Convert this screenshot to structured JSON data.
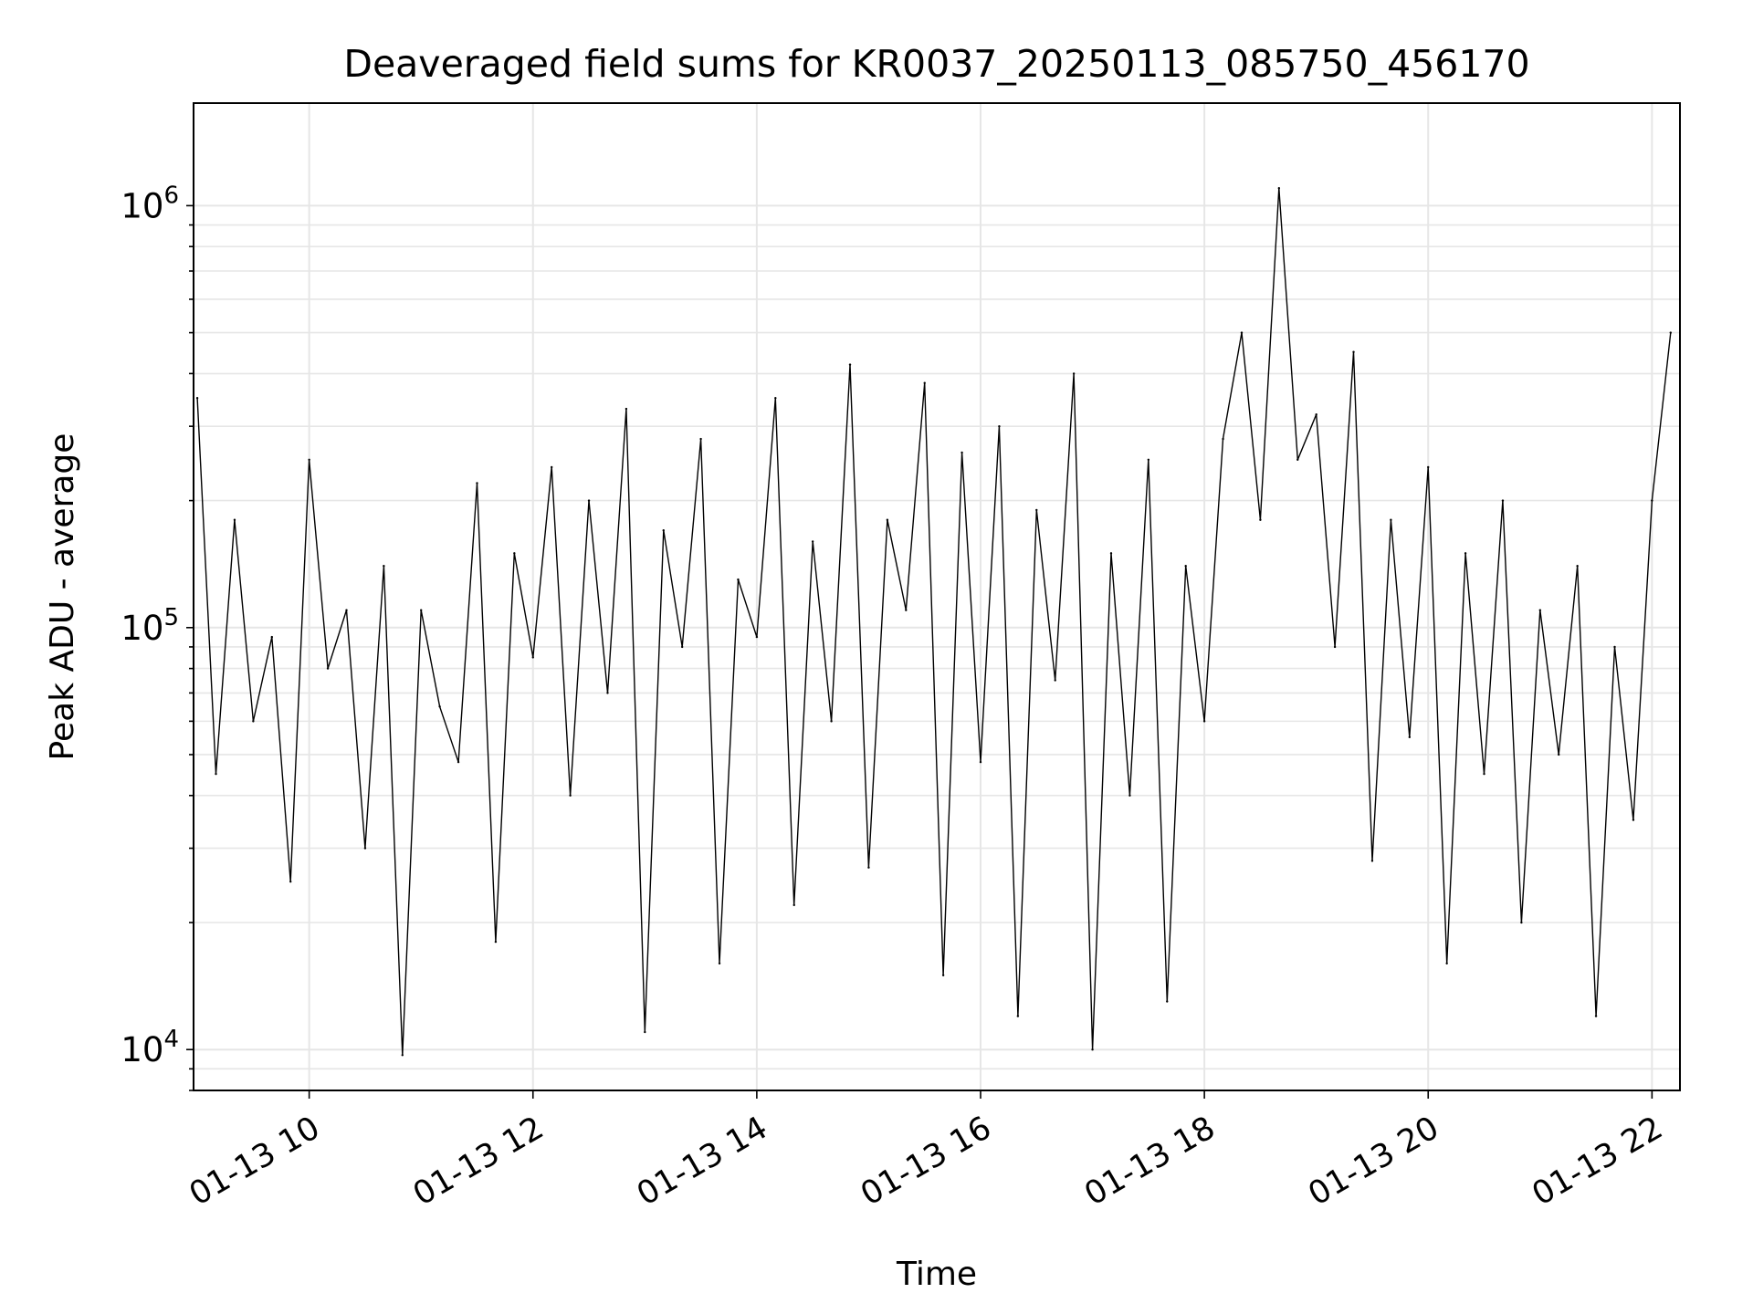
{
  "chart_data": {
    "type": "line",
    "title": "Deaveraged field sums for KR0037_20250113_085750_456170",
    "xlabel": "Time",
    "ylabel": "Peak ADU - average",
    "yscale": "log",
    "ylim": [
      8000,
      1750000
    ],
    "xlim": [
      "2025-01-13 08:58",
      "2025-01-13 22:15"
    ],
    "x_ticks": [
      {
        "t": "2025-01-13 10:00",
        "label": "01-13 10"
      },
      {
        "t": "2025-01-13 12:00",
        "label": "01-13 12"
      },
      {
        "t": "2025-01-13 14:00",
        "label": "01-13 14"
      },
      {
        "t": "2025-01-13 16:00",
        "label": "01-13 16"
      },
      {
        "t": "2025-01-13 18:00",
        "label": "01-13 18"
      },
      {
        "t": "2025-01-13 20:00",
        "label": "01-13 20"
      },
      {
        "t": "2025-01-13 22:00",
        "label": "01-13 22"
      }
    ],
    "y_ticks": [
      {
        "value": 10000,
        "base": "10",
        "exp": "4"
      },
      {
        "value": 100000,
        "base": "10",
        "exp": "5"
      },
      {
        "value": 1000000,
        "base": "10",
        "exp": "6"
      }
    ],
    "grid": true,
    "line_color": "#000000",
    "series": [
      {
        "x": [
          "2025-01-13 09:00",
          "2025-01-13 09:10",
          "2025-01-13 09:20",
          "2025-01-13 09:30",
          "2025-01-13 09:40",
          "2025-01-13 09:50",
          "2025-01-13 10:00",
          "2025-01-13 10:10",
          "2025-01-13 10:20",
          "2025-01-13 10:30",
          "2025-01-13 10:40",
          "2025-01-13 10:50",
          "2025-01-13 11:00",
          "2025-01-13 11:10",
          "2025-01-13 11:20",
          "2025-01-13 11:30",
          "2025-01-13 11:40",
          "2025-01-13 11:50",
          "2025-01-13 12:00",
          "2025-01-13 12:10",
          "2025-01-13 12:20",
          "2025-01-13 12:30",
          "2025-01-13 12:40",
          "2025-01-13 12:50",
          "2025-01-13 13:00",
          "2025-01-13 13:10",
          "2025-01-13 13:20",
          "2025-01-13 13:30",
          "2025-01-13 13:40",
          "2025-01-13 13:50",
          "2025-01-13 14:00",
          "2025-01-13 14:10",
          "2025-01-13 14:20",
          "2025-01-13 14:30",
          "2025-01-13 14:40",
          "2025-01-13 14:50",
          "2025-01-13 15:00",
          "2025-01-13 15:10",
          "2025-01-13 15:20",
          "2025-01-13 15:30",
          "2025-01-13 15:40",
          "2025-01-13 15:50",
          "2025-01-13 16:00",
          "2025-01-13 16:10",
          "2025-01-13 16:20",
          "2025-01-13 16:30",
          "2025-01-13 16:40",
          "2025-01-13 16:50",
          "2025-01-13 17:00",
          "2025-01-13 17:10",
          "2025-01-13 17:20",
          "2025-01-13 17:30",
          "2025-01-13 17:40",
          "2025-01-13 17:50",
          "2025-01-13 18:00",
          "2025-01-13 18:10",
          "2025-01-13 18:20",
          "2025-01-13 18:30",
          "2025-01-13 18:40",
          "2025-01-13 18:50",
          "2025-01-13 19:00",
          "2025-01-13 19:10",
          "2025-01-13 19:20",
          "2025-01-13 19:30",
          "2025-01-13 19:40",
          "2025-01-13 19:50",
          "2025-01-13 20:00",
          "2025-01-13 20:10",
          "2025-01-13 20:20",
          "2025-01-13 20:30",
          "2025-01-13 20:40",
          "2025-01-13 20:50",
          "2025-01-13 21:00",
          "2025-01-13 21:10",
          "2025-01-13 21:20",
          "2025-01-13 21:30",
          "2025-01-13 21:40",
          "2025-01-13 21:50",
          "2025-01-13 22:00",
          "2025-01-13 22:10"
        ],
        "values": [
          350000,
          45000,
          180000,
          60000,
          95000,
          25000,
          250000,
          80000,
          110000,
          30000,
          140000,
          9700,
          110000,
          65000,
          48000,
          220000,
          18000,
          150000,
          85000,
          240000,
          40000,
          200000,
          70000,
          330000,
          11000,
          170000,
          90000,
          280000,
          16000,
          130000,
          95000,
          350000,
          22000,
          160000,
          60000,
          420000,
          27000,
          180000,
          110000,
          380000,
          15000,
          260000,
          48000,
          300000,
          12000,
          190000,
          75000,
          400000,
          10000,
          150000,
          40000,
          250000,
          13000,
          140000,
          60000,
          280000,
          500000,
          180000,
          1100000,
          250000,
          320000,
          90000,
          450000,
          28000,
          180000,
          55000,
          240000,
          16000,
          150000,
          45000,
          200000,
          20000,
          110000,
          50000,
          140000,
          12000,
          90000,
          35000,
          200000,
          500000
        ]
      }
    ]
  }
}
